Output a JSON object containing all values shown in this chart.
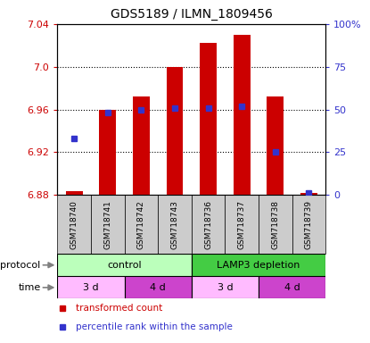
{
  "title": "GDS5189 / ILMN_1809456",
  "samples": [
    "GSM718740",
    "GSM718741",
    "GSM718742",
    "GSM718743",
    "GSM718736",
    "GSM718737",
    "GSM718738",
    "GSM718739"
  ],
  "bar_bottom": 6.88,
  "bar_tops": [
    6.884,
    6.96,
    6.972,
    7.0,
    7.022,
    7.03,
    6.972,
    6.882
  ],
  "percentile_ranks": [
    33,
    48,
    50,
    51,
    51,
    52,
    25,
    1
  ],
  "ylim": [
    6.88,
    7.04
  ],
  "yticks": [
    6.88,
    6.92,
    6.96,
    7.0,
    7.04
  ],
  "right_yticks": [
    0,
    25,
    50,
    75,
    100
  ],
  "right_ylim": [
    0,
    100
  ],
  "bar_color": "#cc0000",
  "dot_color": "#3333cc",
  "protocol_groups": [
    {
      "label": "control",
      "start": 0,
      "end": 4,
      "color": "#bbffbb"
    },
    {
      "label": "LAMP3 depletion",
      "start": 4,
      "end": 8,
      "color": "#44cc44"
    }
  ],
  "time_groups": [
    {
      "label": "3 d",
      "start": 0,
      "end": 2,
      "color": "#ffbbff"
    },
    {
      "label": "4 d",
      "start": 2,
      "end": 4,
      "color": "#cc44cc"
    },
    {
      "label": "3 d",
      "start": 4,
      "end": 6,
      "color": "#ffbbff"
    },
    {
      "label": "4 d",
      "start": 6,
      "end": 8,
      "color": "#cc44cc"
    }
  ],
  "legend_items": [
    {
      "label": "transformed count",
      "color": "#cc0000"
    },
    {
      "label": "percentile rank within the sample",
      "color": "#3333cc"
    }
  ],
  "fig_bg": "#ffffff",
  "label_fontsize": 8,
  "tick_fontsize": 8,
  "sample_fontsize": 6.5,
  "title_fontsize": 10
}
